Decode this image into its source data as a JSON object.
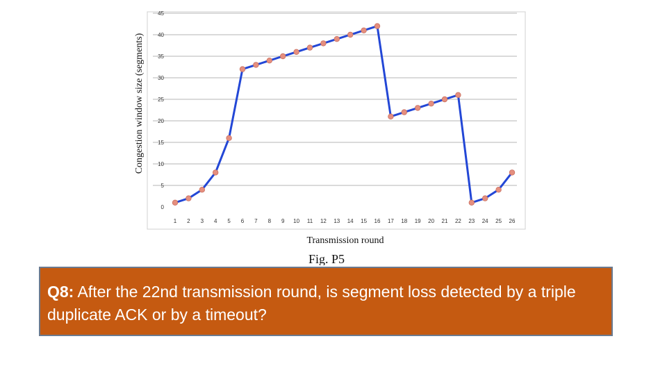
{
  "chart_data": {
    "type": "line",
    "xlabel": "Transmission round",
    "ylabel": "Congestion window size (segments)",
    "caption": "Fig. P5",
    "x": [
      1,
      2,
      3,
      4,
      5,
      6,
      7,
      8,
      9,
      10,
      11,
      12,
      13,
      14,
      15,
      16,
      17,
      18,
      19,
      20,
      21,
      22,
      23,
      24,
      25,
      26
    ],
    "series": [
      {
        "values": [
          1,
          2,
          4,
          8,
          16,
          32,
          33,
          34,
          35,
          36,
          37,
          38,
          39,
          40,
          41,
          42,
          21,
          22,
          23,
          24,
          25,
          26,
          1,
          2,
          4,
          8
        ]
      }
    ],
    "xticks": [
      "1",
      "2",
      "3",
      "4",
      "5",
      "6",
      "7",
      "8",
      "9",
      "10",
      "11",
      "12",
      "13",
      "14",
      "15",
      "16",
      "17",
      "18",
      "19",
      "20",
      "21",
      "22",
      "23",
      "24",
      "25",
      "26"
    ],
    "yticks": [
      "0",
      "5",
      "10",
      "15",
      "20",
      "25",
      "30",
      "35",
      "40",
      "45"
    ],
    "ylim": [
      0,
      45
    ],
    "grid": "horizontal",
    "colors": {
      "line": "#2347d6",
      "marker": "#e58f7f",
      "grid": "#b5b5b5"
    }
  },
  "question": {
    "label": "Q8:",
    "text": " After the 22nd transmission round, is segment loss detected by a triple duplicate ACK or by a timeout?",
    "background": "#c55a11"
  }
}
